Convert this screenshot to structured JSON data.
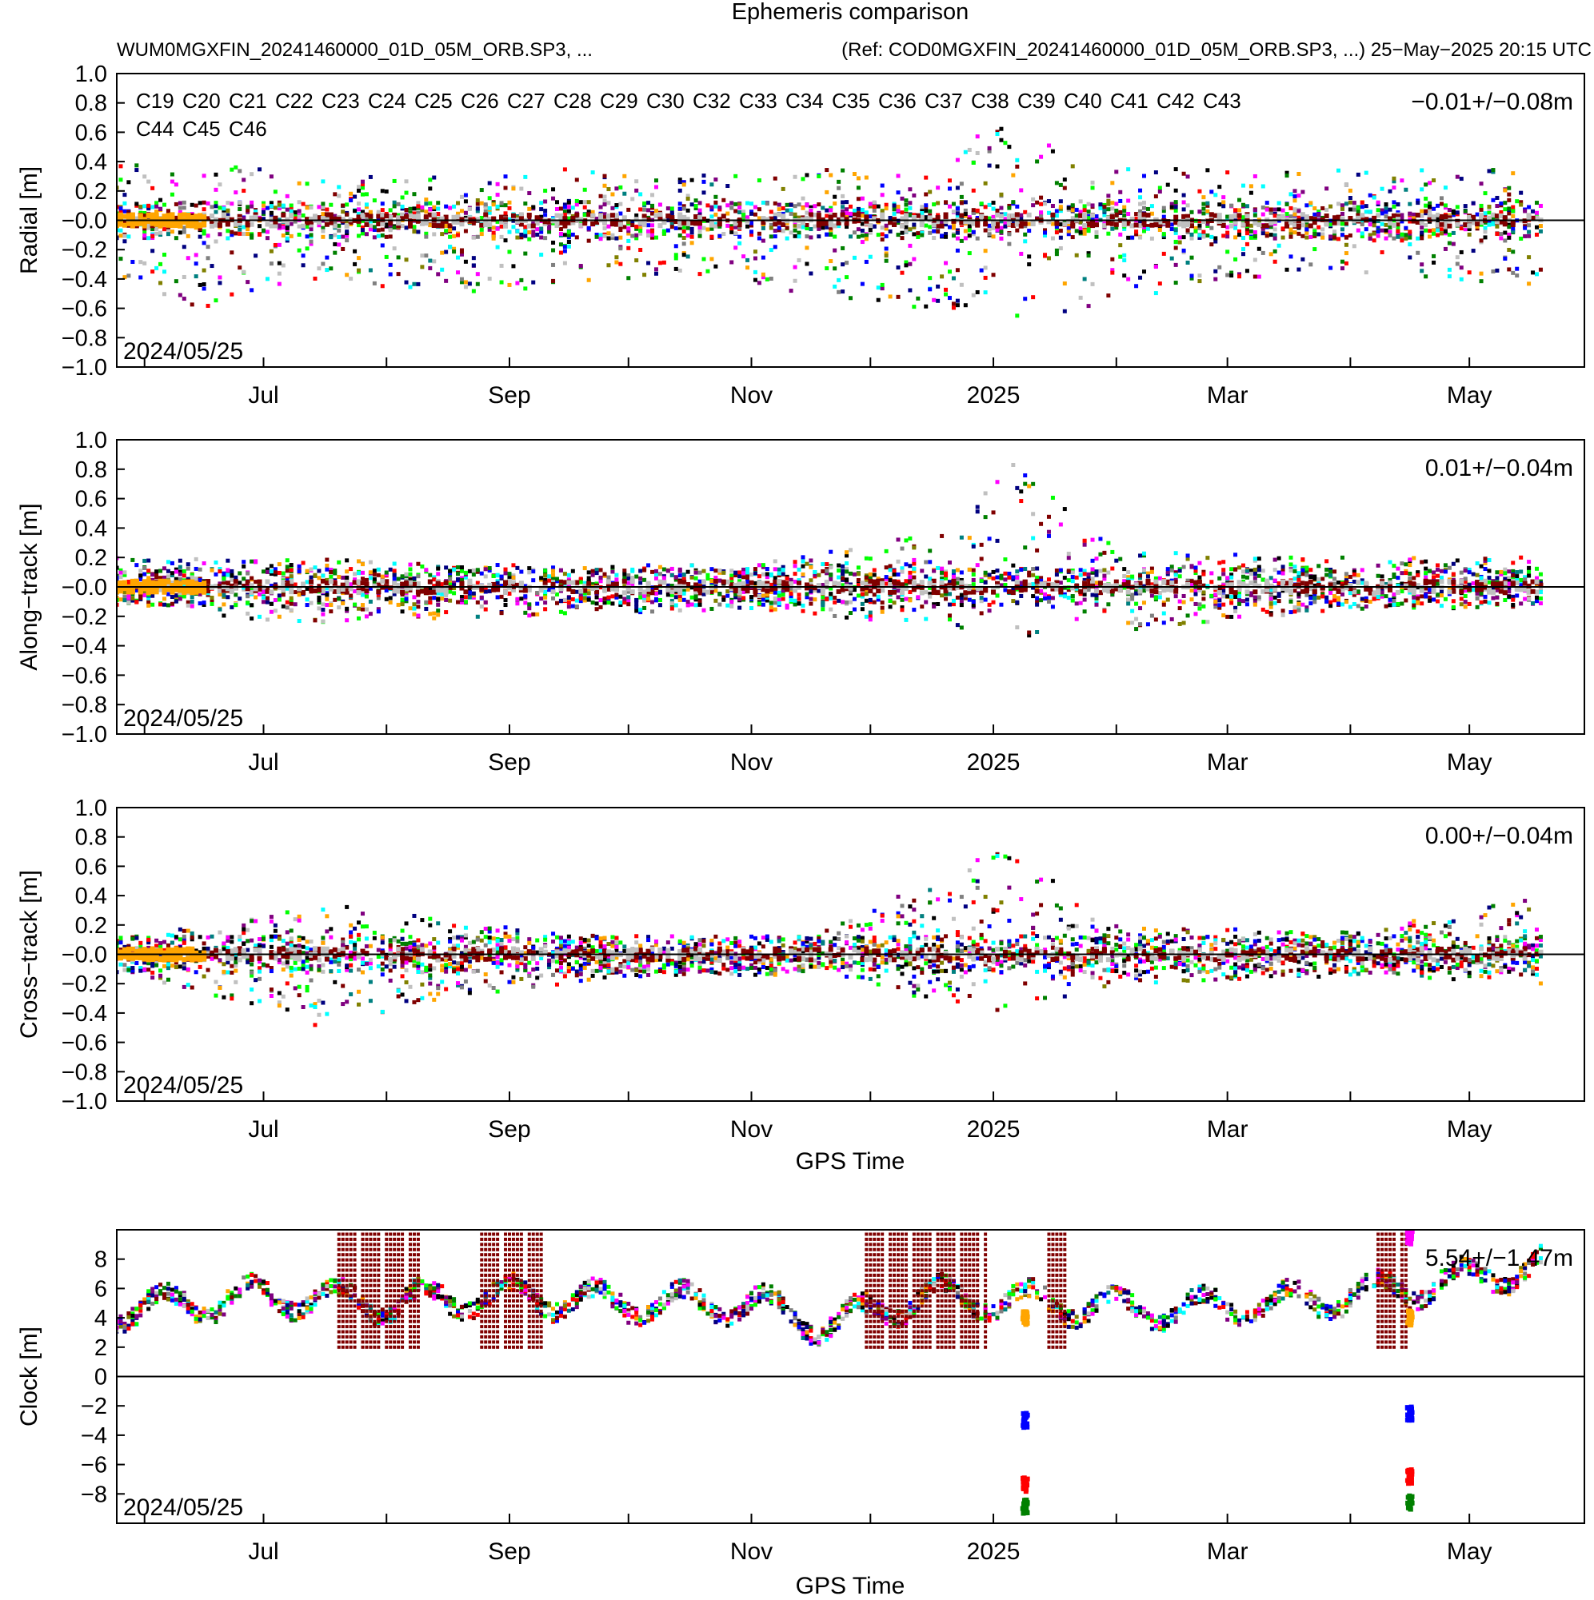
{
  "figure": {
    "title": "Ephemeris comparison",
    "subtitle_left": "WUM0MGXFIN_20241460000_01D_05M_ORB.SP3, ...",
    "subtitle_right": "(Ref: COD0MGXFIN_20241460000_01D_05M_ORB.SP3, ...) 25−May−2025 20:15 UTC",
    "start_date_label": "2024/05/25",
    "xlabel": "GPS Time"
  },
  "legend": [
    {
      "name": "C19",
      "color": "#000000"
    },
    {
      "name": "C20",
      "color": "#ff0000"
    },
    {
      "name": "C21",
      "color": "#0000ff"
    },
    {
      "name": "C22",
      "color": "#00ff00"
    },
    {
      "name": "C23",
      "color": "#000080"
    },
    {
      "name": "C24",
      "color": "#800080"
    },
    {
      "name": "C25",
      "color": "#008000"
    },
    {
      "name": "C26",
      "color": "#00ffff"
    },
    {
      "name": "C27",
      "color": "#ff00ff"
    },
    {
      "name": "C28",
      "color": "#c0c0c0"
    },
    {
      "name": "C29",
      "color": "#800000"
    },
    {
      "name": "C30",
      "color": "#ffa500"
    },
    {
      "name": "C32",
      "color": "#808080"
    },
    {
      "name": "C33",
      "color": "#808000"
    },
    {
      "name": "C34",
      "color": "#008080"
    },
    {
      "name": "C35",
      "color": "#000000"
    },
    {
      "name": "C36",
      "color": "#ff0000"
    },
    {
      "name": "C37",
      "color": "#0000ff"
    },
    {
      "name": "C38",
      "color": "#00ff00"
    },
    {
      "name": "C39",
      "color": "#000080"
    },
    {
      "name": "C40",
      "color": "#800080"
    },
    {
      "name": "C41",
      "color": "#008000"
    },
    {
      "name": "C42",
      "color": "#00ffff"
    },
    {
      "name": "C43",
      "color": "#ff00ff"
    },
    {
      "name": "C44",
      "color": "#c0c0c0"
    },
    {
      "name": "C45",
      "color": "#800000"
    },
    {
      "name": "C46",
      "color": "#ffa500"
    }
  ],
  "chart_data": [
    {
      "type": "scatter",
      "ylabel": "Radial [m]",
      "stat": "−0.01+/−0.08m",
      "ylim": [
        -1.0,
        1.0
      ],
      "yticks": [
        "−1.0",
        "−0.8",
        "−0.6",
        "−0.4",
        "−0.2",
        "−0.0",
        "0.2",
        "0.4",
        "0.6",
        "0.8",
        "1.0"
      ],
      "xticks": [
        "Jul",
        "Sep",
        "Nov",
        "2025",
        "Mar",
        "May"
      ],
      "envelope": [
        {
          "date": "2024-05-25",
          "upper": 0.38,
          "lower": -0.38
        },
        {
          "date": "2024-06-15",
          "upper": 0.4,
          "lower": -0.6
        },
        {
          "date": "2024-07-15",
          "upper": 0.3,
          "lower": -0.4
        },
        {
          "date": "2024-08-15",
          "upper": 0.3,
          "lower": -0.5
        },
        {
          "date": "2024-09-15",
          "upper": 0.35,
          "lower": -0.45
        },
        {
          "date": "2024-10-15",
          "upper": 0.3,
          "lower": -0.35
        },
        {
          "date": "2024-11-15",
          "upper": 0.35,
          "lower": -0.5
        },
        {
          "date": "2024-12-15",
          "upper": 0.35,
          "lower": -0.6
        },
        {
          "date": "2025-01-01",
          "upper": 0.65,
          "lower": -0.75
        },
        {
          "date": "2025-02-01",
          "upper": 0.35,
          "lower": -0.55
        },
        {
          "date": "2025-03-01",
          "upper": 0.35,
          "lower": -0.4
        },
        {
          "date": "2025-04-01",
          "upper": 0.35,
          "lower": -0.35
        },
        {
          "date": "2025-05-20",
          "upper": 0.35,
          "lower": -0.45
        }
      ]
    },
    {
      "type": "scatter",
      "ylabel": "Along−track [m]",
      "stat": "0.01+/−0.04m",
      "ylim": [
        -1.0,
        1.0
      ],
      "yticks": [
        "−1.0",
        "−0.8",
        "−0.6",
        "−0.4",
        "−0.2",
        "−0.0",
        "0.2",
        "0.4",
        "0.6",
        "0.8",
        "1.0"
      ],
      "xticks": [
        "Jul",
        "Sep",
        "Nov",
        "2025",
        "Mar",
        "May"
      ],
      "envelope": [
        {
          "date": "2024-05-25",
          "upper": 0.2,
          "lower": -0.1
        },
        {
          "date": "2024-07-01",
          "upper": 0.2,
          "lower": -0.25
        },
        {
          "date": "2024-09-01",
          "upper": 0.15,
          "lower": -0.2
        },
        {
          "date": "2024-11-01",
          "upper": 0.15,
          "lower": -0.15
        },
        {
          "date": "2024-12-25",
          "upper": 0.4,
          "lower": -0.3
        },
        {
          "date": "2025-01-01",
          "upper": 1.0,
          "lower": -0.35
        },
        {
          "date": "2025-02-01",
          "upper": 0.25,
          "lower": -0.3
        },
        {
          "date": "2025-04-01",
          "upper": 0.2,
          "lower": -0.15
        },
        {
          "date": "2025-05-20",
          "upper": 0.2,
          "lower": -0.15
        }
      ]
    },
    {
      "type": "scatter",
      "ylabel": "Cross−track [m]",
      "stat": "0.00+/−0.04m",
      "ylim": [
        -1.0,
        1.0
      ],
      "yticks": [
        "−1.0",
        "−0.8",
        "−0.6",
        "−0.4",
        "−0.2",
        "−0.0",
        "0.2",
        "0.4",
        "0.6",
        "0.8",
        "1.0"
      ],
      "xticks": [
        "Jul",
        "Sep",
        "Nov",
        "2025",
        "Mar",
        "May"
      ],
      "envelope": [
        {
          "date": "2024-05-25",
          "upper": 0.1,
          "lower": -0.1
        },
        {
          "date": "2024-07-15",
          "upper": 0.35,
          "lower": -0.5
        },
        {
          "date": "2024-08-15",
          "upper": 0.25,
          "lower": -0.3
        },
        {
          "date": "2024-10-01",
          "upper": 0.1,
          "lower": -0.15
        },
        {
          "date": "2024-11-15",
          "upper": 0.1,
          "lower": -0.15
        },
        {
          "date": "2025-01-05",
          "upper": 0.75,
          "lower": -0.4
        },
        {
          "date": "2025-02-01",
          "upper": 0.2,
          "lower": -0.2
        },
        {
          "date": "2025-04-01",
          "upper": 0.15,
          "lower": -0.15
        },
        {
          "date": "2025-05-20",
          "upper": 0.4,
          "lower": -0.2
        }
      ]
    },
    {
      "type": "scatter",
      "ylabel": "Clock [m]",
      "stat": "5.54+/−1.47m",
      "ylim": [
        -10,
        10
      ],
      "yticks": [
        "−8",
        "−6",
        "−4",
        "−2",
        "0",
        "2",
        "4",
        "6",
        "8"
      ],
      "yvalues": [
        -8,
        -6,
        -4,
        -2,
        0,
        2,
        4,
        6,
        8
      ],
      "xticks": [
        "Jul",
        "Sep",
        "Nov",
        "2025",
        "Mar",
        "May"
      ],
      "mean_curve": [
        {
          "date": "2024-05-25",
          "y": 4.5
        },
        {
          "date": "2024-06-15",
          "y": 5.0
        },
        {
          "date": "2024-07-01",
          "y": 5.5
        },
        {
          "date": "2024-08-01",
          "y": 5.0
        },
        {
          "date": "2024-09-01",
          "y": 5.5
        },
        {
          "date": "2024-10-01",
          "y": 5.0
        },
        {
          "date": "2024-11-01",
          "y": 5.0
        },
        {
          "date": "2024-11-20",
          "y": 3.5
        },
        {
          "date": "2024-12-15",
          "y": 5.5
        },
        {
          "date": "2025-01-15",
          "y": 5.0
        },
        {
          "date": "2025-02-15",
          "y": 4.5
        },
        {
          "date": "2025-03-15",
          "y": 5.0
        },
        {
          "date": "2025-04-15",
          "y": 6.0
        },
        {
          "date": "2025-05-20",
          "y": 7.5
        }
      ],
      "outlier_clusters": [
        {
          "date": "2025-01-09",
          "y": -3.0,
          "color": "#0000ff"
        },
        {
          "date": "2025-01-09",
          "y": -7.4,
          "color": "#ff0000"
        },
        {
          "date": "2025-01-09",
          "y": -8.9,
          "color": "#008000"
        },
        {
          "date": "2025-01-09",
          "y": 4.0,
          "color": "#ffa500"
        },
        {
          "date": "2025-04-16",
          "y": -2.5,
          "color": "#0000ff"
        },
        {
          "date": "2025-04-16",
          "y": -6.8,
          "color": "#ff0000"
        },
        {
          "date": "2025-04-16",
          "y": -8.6,
          "color": "#008000"
        },
        {
          "date": "2025-04-16",
          "y": 4.0,
          "color": "#ffa500"
        },
        {
          "date": "2025-04-16",
          "y": 9.5,
          "color": "#ff00ff"
        }
      ],
      "spike_periods": [
        {
          "start": "2024-07-20",
          "end": "2024-08-10"
        },
        {
          "start": "2024-08-25",
          "end": "2024-09-10"
        },
        {
          "start": "2024-11-30",
          "end": "2024-12-31"
        },
        {
          "start": "2025-01-15",
          "end": "2025-01-20"
        },
        {
          "start": "2025-04-08",
          "end": "2025-04-16"
        }
      ]
    }
  ]
}
